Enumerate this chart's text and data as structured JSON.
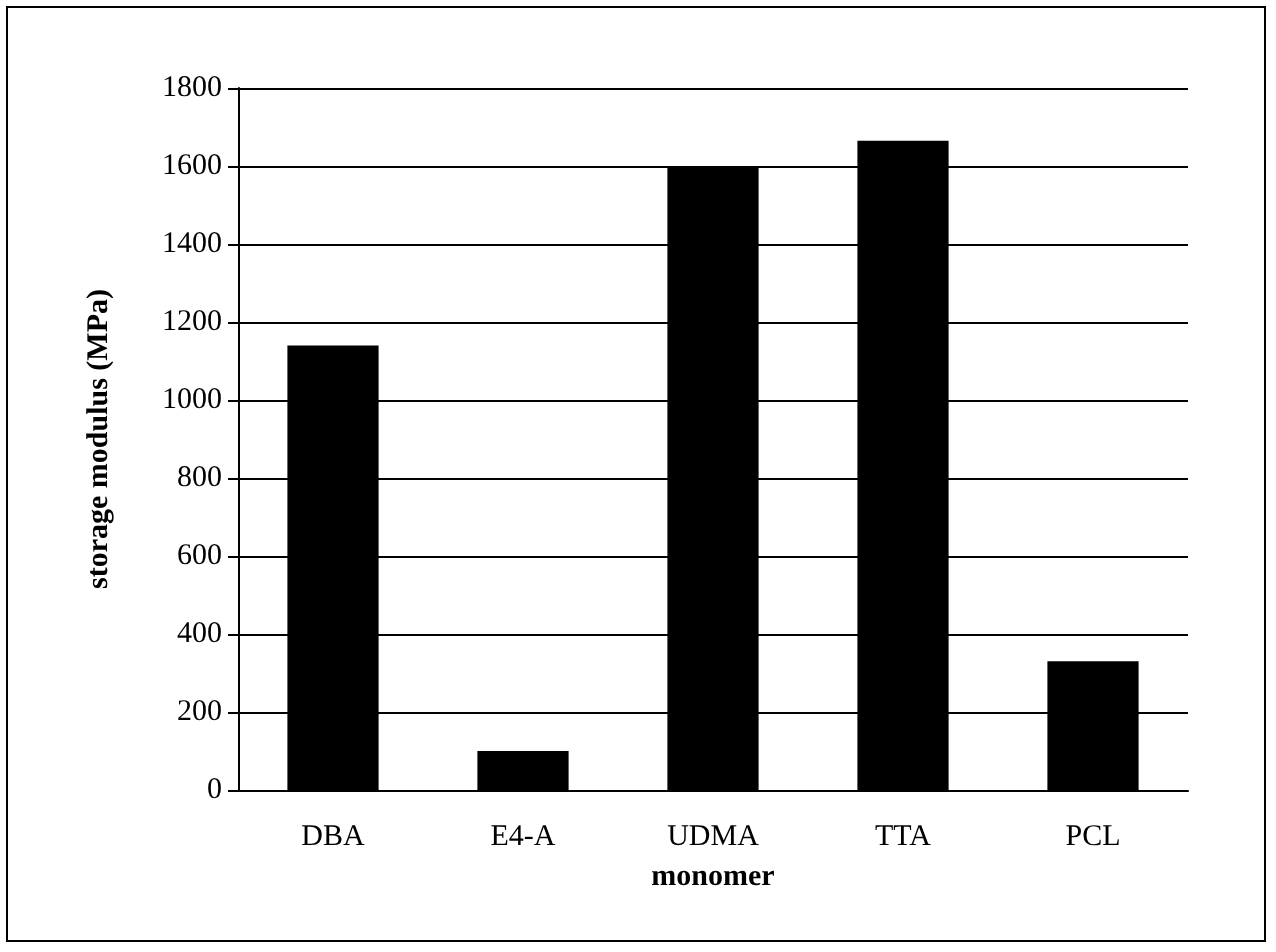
{
  "chart_data": {
    "type": "bar",
    "xlabel": "monomer",
    "ylabel": "storage modulus (MPa)",
    "categories": [
      "DBA",
      "E4-A",
      "UDMA",
      "TTA",
      "PCL"
    ],
    "values": [
      1140,
      100,
      1600,
      1665,
      330
    ],
    "color": "#000000",
    "ylim": [
      0,
      1800
    ],
    "yticks": [
      0,
      200,
      400,
      600,
      800,
      1000,
      1200,
      1400,
      1600,
      1800
    ],
    "grid": "y"
  }
}
